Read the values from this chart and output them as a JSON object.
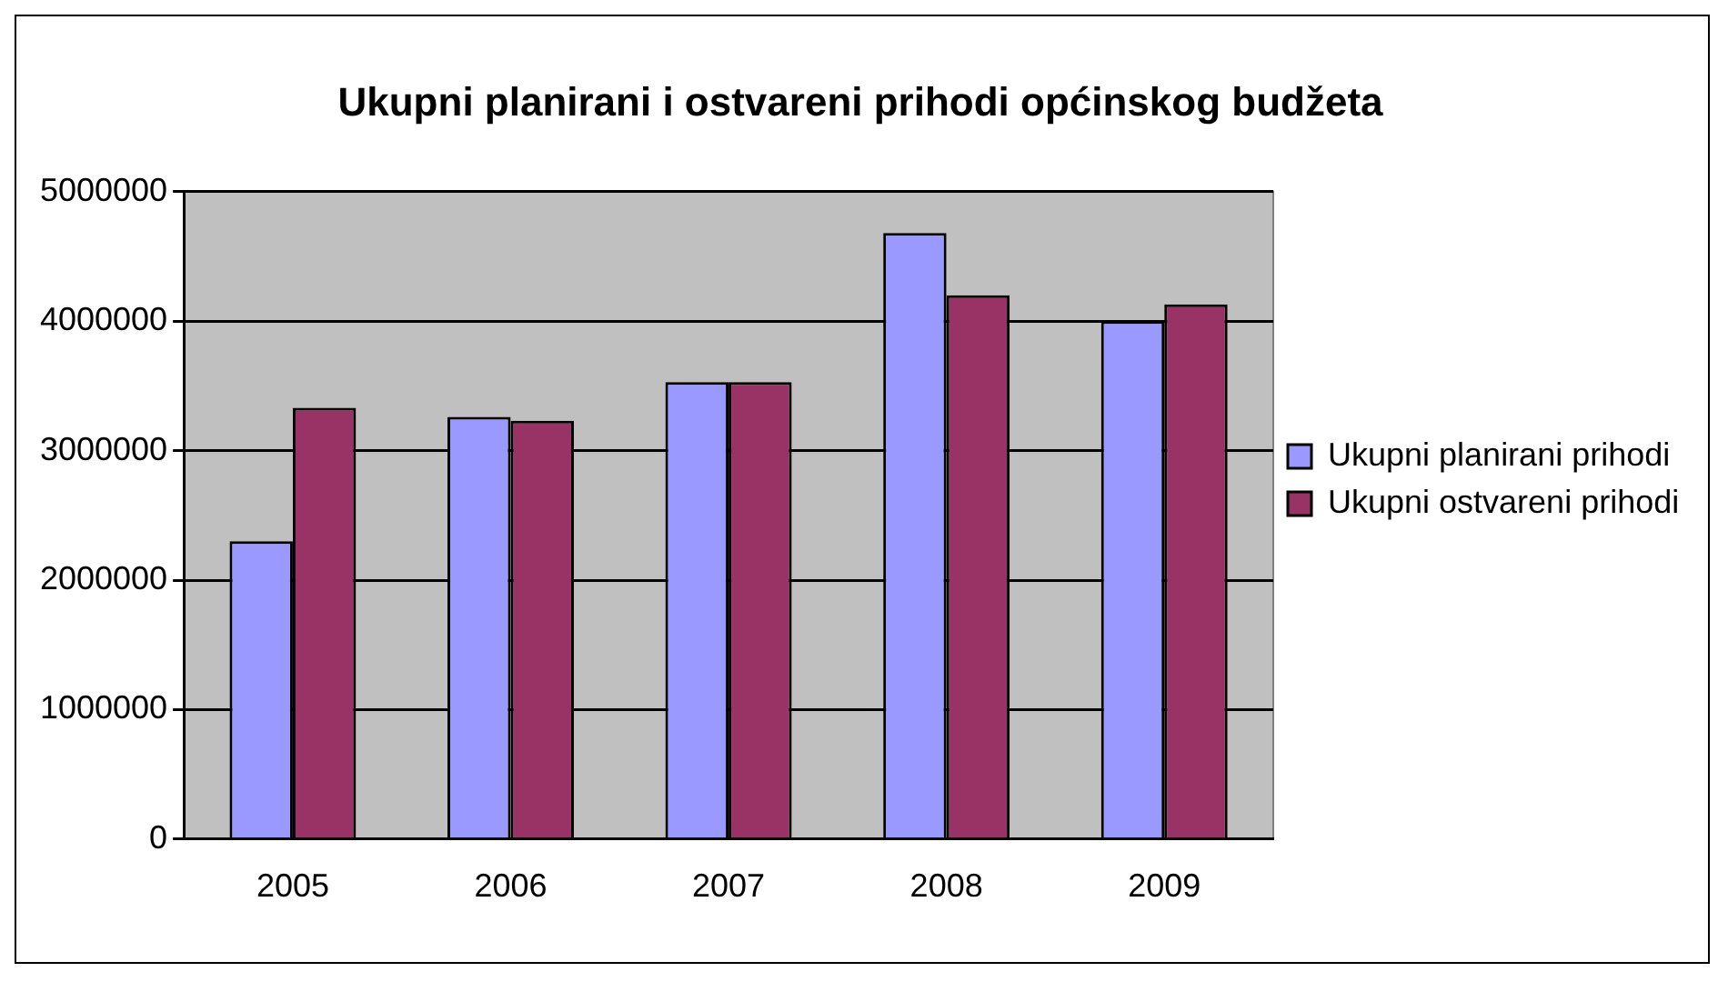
{
  "chart_data": {
    "type": "bar",
    "title": "Ukupni planirani i ostvareni prihodi općinskog budžeta",
    "categories": [
      "2005",
      "2006",
      "2007",
      "2008",
      "2009"
    ],
    "series": [
      {
        "name": "Ukupni planirani prihodi",
        "color": "#9999ff",
        "values": [
          2300000,
          3260000,
          3530000,
          4680000,
          4000000
        ]
      },
      {
        "name": "Ukupni ostvareni prihodi",
        "color": "#993366",
        "values": [
          3330000,
          3230000,
          3530000,
          4200000,
          4130000
        ]
      }
    ],
    "ylim": [
      0,
      5000000
    ],
    "yticks": [
      0,
      1000000,
      2000000,
      3000000,
      4000000,
      5000000
    ],
    "grid": "y",
    "legend": "right"
  }
}
